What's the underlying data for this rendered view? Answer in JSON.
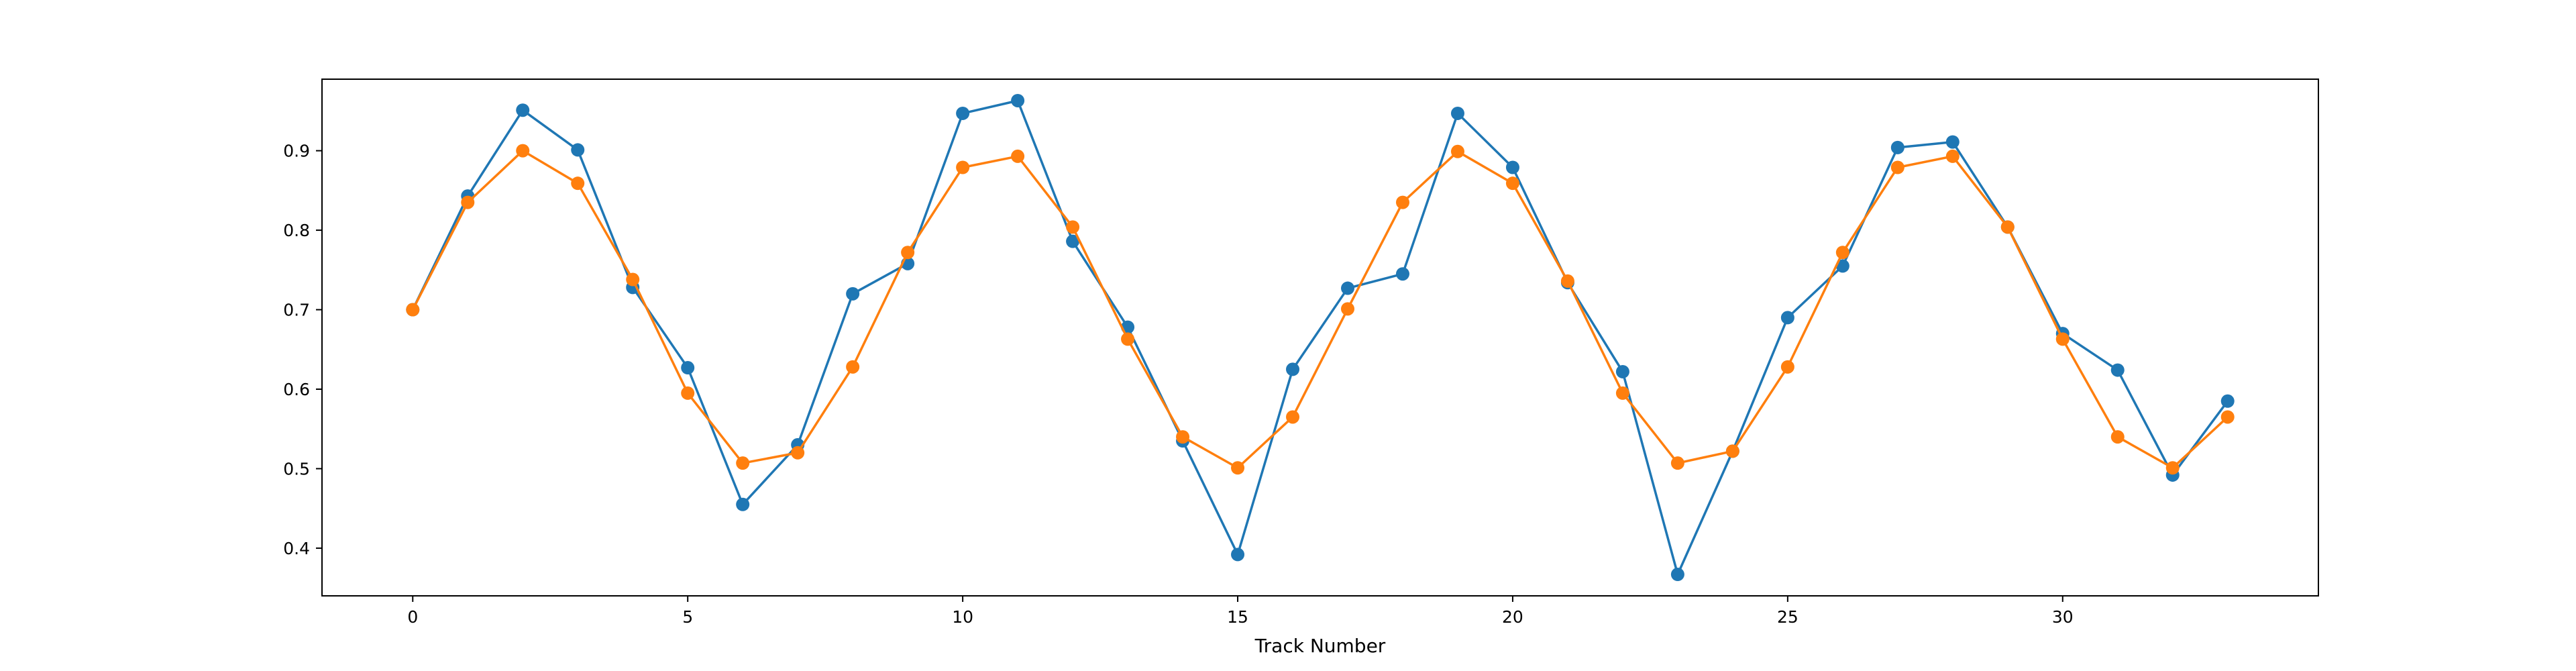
{
  "chart_data": {
    "type": "line",
    "title": "",
    "xlabel": "Track Number",
    "ylabel": "",
    "xlim": [
      -1.65,
      34.65
    ],
    "ylim": [
      0.34,
      0.99
    ],
    "xticks": [
      0,
      5,
      10,
      15,
      20,
      25,
      30
    ],
    "yticks": [
      0.4,
      0.5,
      0.6,
      0.7,
      0.8,
      0.9
    ],
    "grid": false,
    "legend": "none",
    "x": [
      0,
      1,
      2,
      3,
      4,
      5,
      6,
      7,
      8,
      9,
      10,
      11,
      12,
      13,
      14,
      15,
      16,
      17,
      18,
      19,
      20,
      21,
      22,
      23,
      24,
      25,
      26,
      27,
      28,
      29,
      30,
      31,
      32,
      33
    ],
    "series": [
      {
        "color": "#1f77b4",
        "marker": "circle",
        "values": [
          0.7,
          0.843,
          0.951,
          0.901,
          0.728,
          0.627,
          0.455,
          0.53,
          0.72,
          0.758,
          0.947,
          0.963,
          0.786,
          0.678,
          0.535,
          0.392,
          0.625,
          0.727,
          0.745,
          0.947,
          0.879,
          0.734,
          0.622,
          0.367,
          0.522,
          0.69,
          0.755,
          0.904,
          0.911,
          0.804,
          0.67,
          0.624,
          0.492,
          0.585
        ]
      },
      {
        "color": "#ff7f0e",
        "marker": "circle",
        "values": [
          0.7,
          0.835,
          0.9,
          0.859,
          0.738,
          0.595,
          0.507,
          0.52,
          0.628,
          0.772,
          0.879,
          0.893,
          0.804,
          0.663,
          0.54,
          0.501,
          0.565,
          0.701,
          0.835,
          0.899,
          0.859,
          0.736,
          0.595,
          0.507,
          0.522,
          0.628,
          0.772,
          0.879,
          0.893,
          0.804,
          0.663,
          0.54,
          0.501,
          0.565
        ]
      }
    ]
  }
}
